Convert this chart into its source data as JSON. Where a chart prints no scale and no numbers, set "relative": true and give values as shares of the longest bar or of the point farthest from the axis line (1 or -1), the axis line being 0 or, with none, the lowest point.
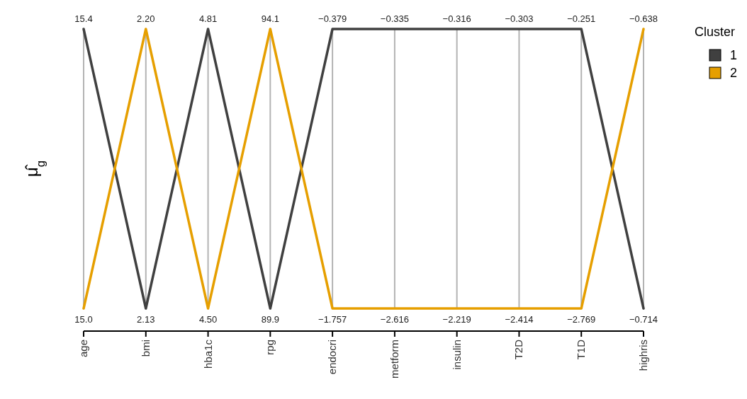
{
  "chart_data": {
    "type": "line",
    "relative": true,
    "ylabel": "μ̂$_{g}$",
    "legend_title": "Cluster",
    "legend": "right",
    "grid": "x",
    "marker": "none",
    "line_style": "solid",
    "categories": [
      "age",
      "bmi",
      "hba1c",
      "rpg",
      "endocri",
      "metform",
      "insulin",
      "T2D",
      "T1D",
      "highris"
    ],
    "series": [
      {
        "name": "1",
        "color": "#404040",
        "values": [
          1,
          0,
          1,
          0,
          1,
          1,
          1,
          1,
          1,
          0
        ]
      },
      {
        "name": "2",
        "color": "#e69f00",
        "values": [
          0,
          1,
          0,
          1,
          0,
          0,
          0,
          0,
          0,
          1
        ]
      }
    ],
    "annotations": [
      {
        "text": "15.4",
        "x": "age",
        "y": 1
      },
      {
        "text": "2.20",
        "x": "bmi",
        "y": 1
      },
      {
        "text": "4.81",
        "x": "hba1c",
        "y": 1
      },
      {
        "text": "94.1",
        "x": "rpg",
        "y": 1
      },
      {
        "text": "−0.379",
        "x": "endocri",
        "y": 1
      },
      {
        "text": "−0.335",
        "x": "metform",
        "y": 1
      },
      {
        "text": "−0.316",
        "x": "insulin",
        "y": 1
      },
      {
        "text": "−0.303",
        "x": "T2D",
        "y": 1
      },
      {
        "text": "−0.251",
        "x": "T1D",
        "y": 1
      },
      {
        "text": "−0.638",
        "x": "highris",
        "y": 1
      },
      {
        "text": "15.0",
        "x": "age",
        "y": 0
      },
      {
        "text": "2.13",
        "x": "bmi",
        "y": 0
      },
      {
        "text": "4.50",
        "x": "hba1c",
        "y": 0
      },
      {
        "text": "89.9",
        "x": "rpg",
        "y": 0
      },
      {
        "text": "−1.757",
        "x": "endocri",
        "y": 0
      },
      {
        "text": "−2.616",
        "x": "metform",
        "y": 0
      },
      {
        "text": "−2.219",
        "x": "insulin",
        "y": 0
      },
      {
        "text": "−2.414",
        "x": "T2D",
        "y": 0
      },
      {
        "text": "−2.769",
        "x": "T1D",
        "y": 0
      },
      {
        "text": "−0.714",
        "x": "highris",
        "y": 0
      }
    ]
  }
}
